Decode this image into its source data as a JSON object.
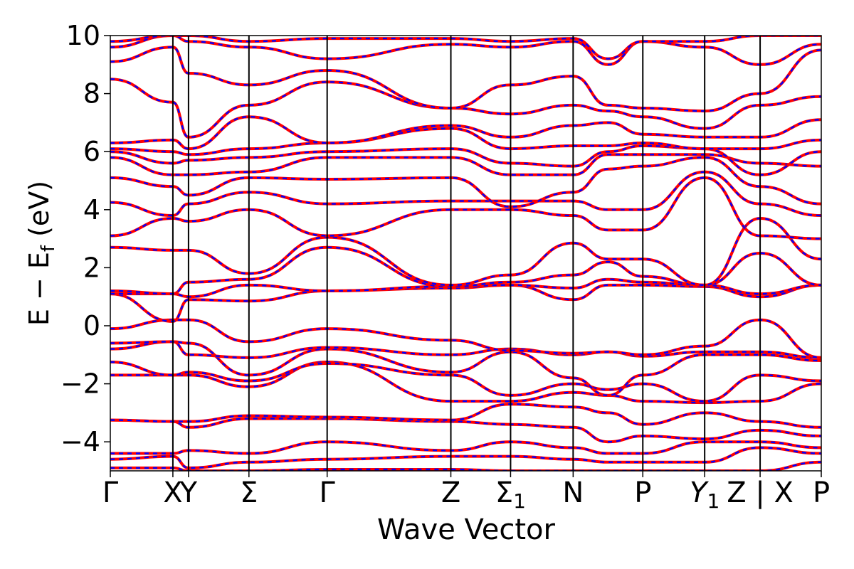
{
  "chart_data": {
    "type": "line",
    "title": "",
    "xlabel": "Wave Vector",
    "ylabel": "E − E",
    "ylabel_sub": "f",
    "ylabel_unit": " (eV)",
    "ylim": [
      -5,
      10
    ],
    "yticks": [
      -4,
      -2,
      0,
      2,
      4,
      6,
      8,
      10
    ],
    "ytick_labels": [
      "−4",
      "−2",
      "0",
      "2",
      "4",
      "6",
      "8",
      "10"
    ],
    "grid": false,
    "legend": "none",
    "xlim": [
      0,
      1
    ],
    "kpoints": [
      {
        "x": 0.0,
        "label": "Γ",
        "sub": "",
        "italic": false
      },
      {
        "x": 0.088,
        "label": "X",
        "sub": "",
        "italic": false
      },
      {
        "x": 0.11,
        "label": "Y",
        "sub": "",
        "italic": false
      },
      {
        "x": 0.195,
        "label": "Σ",
        "sub": "",
        "italic": false
      },
      {
        "x": 0.305,
        "label": "Γ",
        "sub": "",
        "italic": false
      },
      {
        "x": 0.479,
        "label": "Z",
        "sub": "",
        "italic": false
      },
      {
        "x": 0.563,
        "label": "Σ",
        "sub": "1",
        "italic": false
      },
      {
        "x": 0.651,
        "label": "N",
        "sub": "",
        "italic": false
      },
      {
        "x": 0.749,
        "label": "P",
        "sub": "",
        "italic": false
      },
      {
        "x": 0.836,
        "label": "Y",
        "sub": "1",
        "italic": true
      },
      {
        "x": 0.914,
        "label": "Z | X",
        "sub": "",
        "italic": false
      },
      {
        "x": 1.0,
        "label": "P",
        "sub": "",
        "italic": false
      }
    ],
    "series_style": [
      {
        "name": "",
        "color": "#ff0000",
        "dash": "solid"
      },
      {
        "name": "",
        "color": "#0000ff",
        "dash": "dashed"
      }
    ],
    "bands": [
      [
        -4.9,
        -4.9,
        -5.0,
        -5.0,
        -4.95,
        -4.95,
        -5.0,
        -5.0,
        -5.0,
        -5.0,
        -5.0,
        -5.0,
        -4.7
      ],
      [
        -4.6,
        -4.5,
        -4.9,
        -4.7,
        -4.6,
        -4.5,
        -4.5,
        -4.6,
        -4.7,
        -4.7,
        -4.7,
        -4.2,
        -4.4
      ],
      [
        -4.4,
        -4.4,
        -4.3,
        -4.4,
        -4.0,
        -4.3,
        -4.0,
        -4.2,
        -4.4,
        -4.4,
        -4.0,
        -4.0,
        -4.2
      ],
      [
        -3.25,
        -3.3,
        -3.5,
        -3.2,
        -3.2,
        -3.3,
        -3.4,
        -3.5,
        -4.0,
        -3.8,
        -3.9,
        -3.6,
        -3.8
      ],
      [
        -3.25,
        -3.3,
        -3.3,
        -3.1,
        -3.15,
        -3.25,
        -2.7,
        -2.8,
        -3.0,
        -3.4,
        -3.0,
        -3.3,
        -3.5
      ],
      [
        -1.7,
        -1.7,
        -1.7,
        -2.1,
        -1.25,
        -2.6,
        -2.6,
        -2.3,
        -2.4,
        -2.6,
        -2.65,
        -2.6,
        -2.0
      ],
      [
        -1.25,
        -1.7,
        -1.6,
        -1.9,
        -1.3,
        -1.7,
        -2.4,
        -2.0,
        -2.2,
        -2.0,
        -2.6,
        -1.7,
        -1.9
      ],
      [
        -0.8,
        -0.55,
        -0.6,
        -1.7,
        -0.8,
        -1.6,
        -0.9,
        -1.8,
        -2.4,
        -1.7,
        -1.0,
        -1.0,
        -1.2
      ],
      [
        -0.6,
        -0.55,
        -1.0,
        -1.1,
        -0.75,
        -1.0,
        -0.8,
        -1.0,
        -0.9,
        -1.05,
        -0.9,
        -0.9,
        -1.1
      ],
      [
        -0.1,
        0.2,
        0.2,
        -0.55,
        -0.1,
        -0.5,
        -0.85,
        -0.95,
        -0.9,
        -1.0,
        -0.7,
        0.2,
        -1.1
      ],
      [
        1.1,
        0.15,
        0.9,
        0.85,
        1.2,
        1.3,
        1.4,
        0.9,
        1.4,
        1.4,
        1.35,
        1.0,
        1.4
      ],
      [
        1.1,
        1.1,
        1.0,
        1.4,
        1.2,
        1.35,
        1.4,
        1.3,
        1.6,
        1.5,
        1.4,
        1.1,
        1.4
      ],
      [
        1.2,
        1.1,
        1.5,
        1.6,
        2.7,
        1.35,
        1.5,
        1.75,
        2.2,
        1.7,
        1.4,
        2.5,
        1.4
      ],
      [
        2.7,
        2.6,
        2.6,
        1.8,
        3.05,
        1.4,
        1.75,
        2.85,
        2.3,
        2.3,
        1.4,
        3.7,
        2.3
      ],
      [
        3.1,
        3.7,
        3.6,
        4.0,
        3.1,
        4.0,
        4.0,
        3.8,
        3.3,
        3.3,
        5.1,
        3.1,
        3.0
      ],
      [
        4.25,
        3.8,
        4.2,
        4.6,
        4.2,
        4.3,
        4.3,
        4.3,
        4.0,
        4.0,
        5.3,
        4.2,
        3.8
      ],
      [
        5.1,
        4.8,
        4.5,
        5.1,
        5.05,
        5.1,
        4.1,
        4.6,
        5.4,
        5.5,
        5.8,
        4.8,
        4.2
      ],
      [
        5.8,
        5.2,
        5.2,
        5.3,
        5.8,
        5.8,
        5.2,
        5.2,
        5.9,
        5.9,
        5.9,
        5.6,
        5.5
      ],
      [
        6.0,
        5.6,
        5.7,
        5.8,
        6.0,
        6.1,
        5.6,
        5.5,
        6.0,
        6.2,
        6.1,
        5.2,
        6.0
      ],
      [
        6.1,
        6.0,
        5.9,
        6.1,
        6.3,
        6.8,
        6.1,
        6.2,
        6.2,
        6.3,
        6.1,
        6.1,
        6.4
      ],
      [
        6.3,
        6.4,
        6.1,
        7.2,
        6.3,
        6.9,
        6.5,
        6.9,
        7.0,
        6.6,
        6.5,
        6.5,
        7.1
      ],
      [
        8.5,
        7.7,
        6.5,
        7.6,
        8.4,
        7.5,
        7.3,
        7.6,
        7.4,
        7.2,
        6.8,
        7.6,
        7.9
      ],
      [
        9.1,
        9.6,
        8.7,
        8.3,
        8.8,
        7.5,
        8.3,
        8.6,
        7.6,
        7.5,
        7.4,
        8.0,
        9.5
      ],
      [
        9.6,
        10.0,
        9.8,
        9.6,
        9.2,
        9.7,
        9.6,
        9.8,
        9.0,
        9.8,
        9.6,
        9.0,
        9.7
      ],
      [
        9.8,
        10.0,
        10.0,
        9.8,
        9.9,
        9.9,
        9.8,
        9.9,
        9.2,
        9.8,
        9.8,
        10.0,
        10.0
      ]
    ],
    "band_x": [
      0.0,
      0.088,
      0.11,
      0.195,
      0.305,
      0.479,
      0.563,
      0.651,
      0.7,
      0.749,
      0.836,
      0.914,
      1.0
    ]
  }
}
